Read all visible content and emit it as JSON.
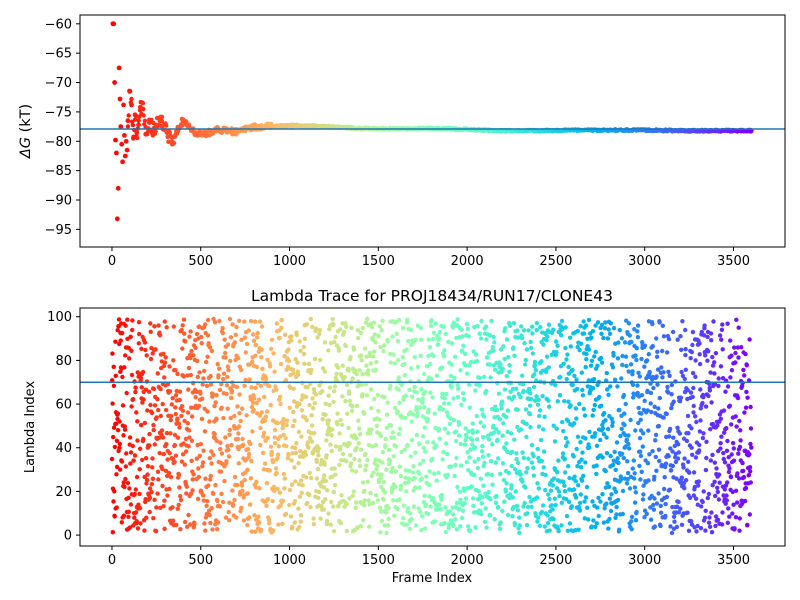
{
  "chart_data": [
    {
      "type": "scatter",
      "title": "",
      "xlabel": "",
      "ylabel": "ΔG (kT)",
      "ylabel_symbol": "ΔG",
      "ylabel_unit": "(kT)",
      "xlim": [
        -180,
        3790
      ],
      "ylim": [
        -98,
        -58.5
      ],
      "xticks": [
        0,
        500,
        1000,
        1500,
        2000,
        2500,
        3000,
        3500
      ],
      "yticks": [
        -60,
        -65,
        -70,
        -75,
        -80,
        -85,
        -90,
        -95
      ],
      "reference_line": {
        "y": -77.9,
        "color": "#1f77b4"
      },
      "colormap": "rainbow (red at start → violet at end, by frame index)",
      "n_frames": 3600,
      "series": [
        {
          "points": [
            [
              5,
              -60
            ],
            [
              10,
              -60
            ],
            [
              15,
              -70
            ],
            [
              20,
              -79.8
            ],
            [
              25,
              -82
            ],
            [
              30,
              -93.2
            ],
            [
              35,
              -88
            ],
            [
              40,
              -67.5
            ],
            [
              45,
              -72.8
            ],
            [
              50,
              -77.5
            ],
            [
              55,
              -80.5
            ],
            [
              60,
              -83.5
            ],
            [
              65,
              -73.8
            ],
            [
              70,
              -79
            ],
            [
              75,
              -82.5
            ],
            [
              80,
              -80
            ],
            [
              85,
              -81.5
            ],
            [
              90,
              -76.5
            ],
            [
              100,
              -71.5
            ],
            [
              110,
              -73.8
            ],
            [
              120,
              -79.5
            ],
            [
              130,
              -75.5
            ],
            [
              140,
              -78.5
            ],
            [
              150,
              -77.2
            ],
            [
              160,
              -74.2
            ],
            [
              175,
              -74.5
            ],
            [
              190,
              -78.8
            ],
            [
              210,
              -76.8
            ],
            [
              230,
              -78
            ],
            [
              250,
              -77.3
            ],
            [
              280,
              -76.5
            ],
            [
              310,
              -78.5
            ],
            [
              340,
              -80.5
            ],
            [
              370,
              -78.3
            ],
            [
              400,
              -76.5
            ],
            [
              430,
              -77.2
            ],
            [
              470,
              -78.5
            ],
            [
              520,
              -78.8
            ],
            [
              600,
              -78
            ],
            [
              700,
              -78.4
            ],
            [
              800,
              -77.6
            ],
            [
              900,
              -77.5
            ],
            [
              1000,
              -77.3
            ],
            [
              1200,
              -77.5
            ],
            [
              1400,
              -77.8
            ],
            [
              1600,
              -77.9
            ],
            [
              1800,
              -77.8
            ],
            [
              2000,
              -78
            ],
            [
              2200,
              -78.2
            ],
            [
              2400,
              -78.2
            ],
            [
              2600,
              -78.1
            ],
            [
              2800,
              -78.1
            ],
            [
              3000,
              -78.1
            ],
            [
              3200,
              -78.2
            ],
            [
              3400,
              -78.2
            ],
            [
              3600,
              -78.2
            ]
          ]
        }
      ]
    },
    {
      "type": "scatter",
      "title": "Lambda Trace for PROJ18434/RUN17/CLONE43",
      "xlabel": "Frame Index",
      "ylabel": "Lambda Index",
      "xlim": [
        -180,
        3790
      ],
      "ylim": [
        -5,
        104
      ],
      "xticks": [
        0,
        500,
        1000,
        1500,
        2000,
        2500,
        3000,
        3500
      ],
      "yticks": [
        0,
        20,
        40,
        60,
        80,
        100
      ],
      "reference_line": {
        "y": 70,
        "color": "#1f77b4"
      },
      "colormap": "rainbow (red at start → violet at end, by frame index)",
      "n_frames": 3600,
      "lambda_range": [
        1,
        99
      ],
      "distribution": "lambda values scattered roughly uniformly over 1–99 across all frames"
    }
  ]
}
